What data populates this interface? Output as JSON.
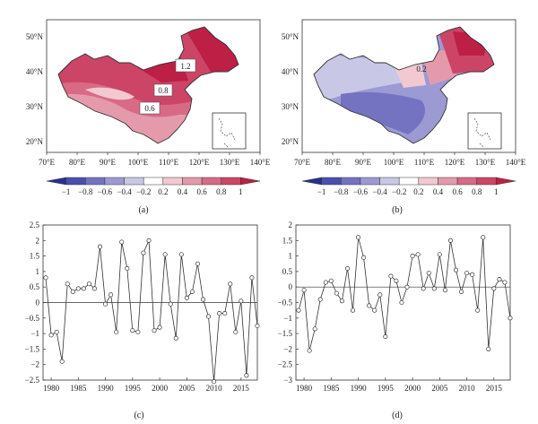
{
  "colors": {
    "ramp": [
      "#2a2f8c",
      "#4b4fae",
      "#7473c2",
      "#9c9ad3",
      "#c8c7e6",
      "#ffffff",
      "#f3c9d1",
      "#e59aac",
      "#d86a85",
      "#cc4566",
      "#bd1f45"
    ],
    "land_outline": "#333333",
    "line": "#333333"
  },
  "maps": [
    {
      "id": "a",
      "caption": "(a)",
      "lat_ticks": [
        "50°N",
        "40°N",
        "30°N",
        "20°N"
      ],
      "lon_ticks": [
        "70°E",
        "80°E",
        "90°E",
        "100°E",
        "110°E",
        "120°E",
        "130°E",
        "140°E"
      ],
      "contour_labels": [
        "1.2",
        "0.8",
        "0.6"
      ],
      "colorbar_ticks": [
        "−1",
        "−0.8",
        "−0.6",
        "−0.4",
        "−0.2",
        "0.2",
        "0.4",
        "0.6",
        "0.8",
        "1"
      ]
    },
    {
      "id": "b",
      "caption": "(b)",
      "lat_ticks": [
        "50°N",
        "40°N",
        "30°N",
        "20°N"
      ],
      "lon_ticks": [
        "70°E",
        "80°E",
        "90°E",
        "100°E",
        "110°E",
        "120°E",
        "130°E",
        "140°E"
      ],
      "contour_labels": [
        "0.2"
      ],
      "colorbar_ticks": [
        "−1",
        "−0.8",
        "−0.6",
        "−0.4",
        "−0.2",
        "0.2",
        "0.4",
        "0.6",
        "0.8",
        "1"
      ]
    }
  ],
  "chart_data": [
    {
      "type": "line",
      "caption": "(c)",
      "x": [
        1979,
        1980,
        1981,
        1982,
        1983,
        1984,
        1985,
        1986,
        1987,
        1988,
        1989,
        1990,
        1991,
        1992,
        1993,
        1994,
        1995,
        1996,
        1997,
        1998,
        1999,
        2000,
        2001,
        2002,
        2003,
        2004,
        2005,
        2006,
        2007,
        2008,
        2009,
        2010,
        2011,
        2012,
        2013,
        2014,
        2015,
        2016,
        2017,
        2018
      ],
      "values": [
        0.8,
        -1.05,
        -0.95,
        -1.9,
        0.6,
        0.35,
        0.45,
        0.45,
        0.6,
        0.45,
        1.8,
        -0.05,
        0.25,
        -0.95,
        1.95,
        1.1,
        -0.9,
        -0.95,
        1.6,
        2.0,
        -0.9,
        -0.8,
        1.55,
        -0.05,
        -1.15,
        1.55,
        0.15,
        0.35,
        1.25,
        0.1,
        -0.45,
        -2.55,
        -0.35,
        -0.35,
        0.6,
        -0.95,
        0.05,
        -2.35,
        0.8,
        -0.75
      ],
      "xlim": [
        1978.5,
        2018
      ],
      "ylim": [
        -2.5,
        2.5
      ],
      "xticks": [
        1980,
        1985,
        1990,
        1995,
        2000,
        2005,
        2010,
        2015
      ],
      "yticks": [
        2.5,
        2,
        1.5,
        1,
        0.5,
        0,
        -0.5,
        -1,
        -1.5,
        -2,
        -2.5
      ],
      "ytick_labels": [
        "2.5",
        "2",
        "1.5",
        "1",
        "0.5",
        "0",
        "−0.5",
        "−1",
        "−1.5",
        "−2",
        "−2.5"
      ],
      "zero_line": true
    },
    {
      "type": "line",
      "caption": "(d)",
      "x": [
        1979,
        1980,
        1981,
        1982,
        1983,
        1984,
        1985,
        1986,
        1987,
        1988,
        1989,
        1990,
        1991,
        1992,
        1993,
        1994,
        1995,
        1996,
        1997,
        1998,
        1999,
        2000,
        2001,
        2002,
        2003,
        2004,
        2005,
        2006,
        2007,
        2008,
        2009,
        2010,
        2011,
        2012,
        2013,
        2014,
        2015,
        2016,
        2017,
        2018
      ],
      "values": [
        -0.75,
        -0.1,
        -2.05,
        -1.35,
        -0.4,
        0.15,
        0.2,
        -0.2,
        -0.45,
        0.6,
        -0.75,
        1.6,
        0.95,
        -0.6,
        -0.75,
        -0.25,
        -1.6,
        0.35,
        0.2,
        -0.5,
        0.0,
        1.0,
        1.05,
        -0.05,
        0.45,
        -0.05,
        1.05,
        -0.1,
        1.5,
        0.55,
        -0.15,
        0.45,
        0.4,
        -0.75,
        1.6,
        -2.0,
        -0.05,
        0.25,
        0.15,
        -1.0
      ],
      "xlim": [
        1978.5,
        2018
      ],
      "ylim": [
        -3,
        2
      ],
      "xticks": [
        1980,
        1985,
        1990,
        1995,
        2000,
        2005,
        2010,
        2015
      ],
      "yticks": [
        2,
        1.5,
        1,
        0.5,
        0,
        -0.5,
        -1,
        -1.5,
        -2,
        -2.5,
        -3
      ],
      "ytick_labels": [
        "2",
        "1.5",
        "1",
        "0.5",
        "0",
        "−0.5",
        "−1",
        "−1.5",
        "−2",
        "−2.5",
        "−3"
      ],
      "zero_line": true
    }
  ]
}
